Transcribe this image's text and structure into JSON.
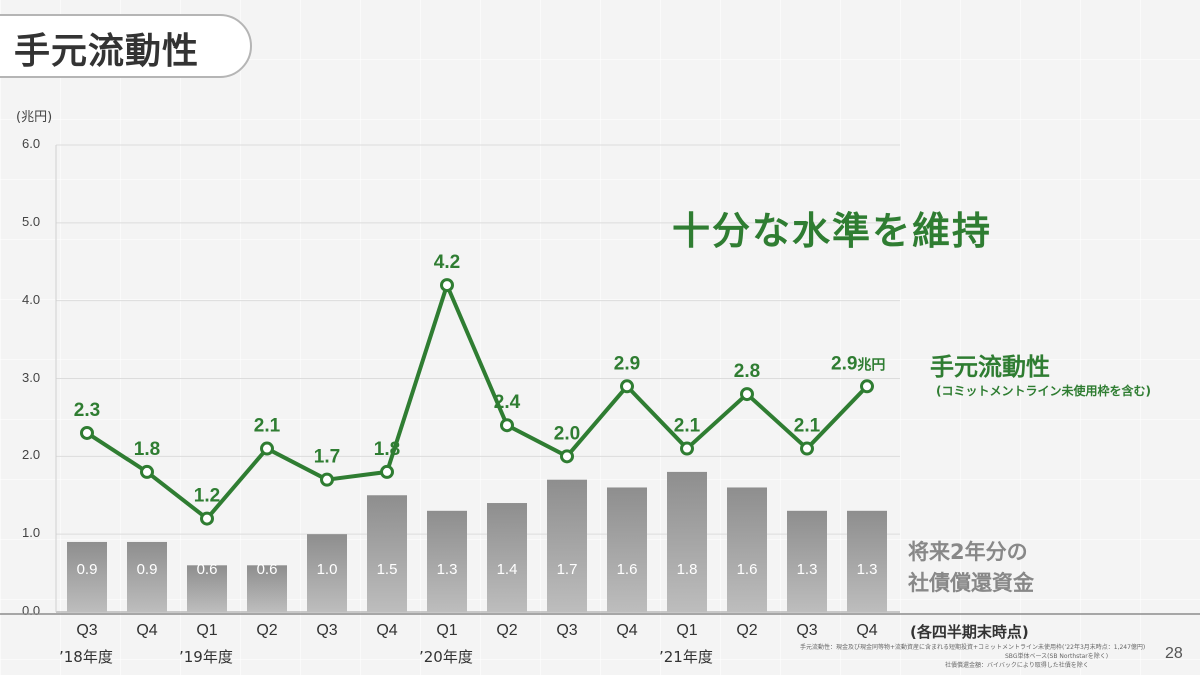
{
  "title": "手元流動性",
  "unit_label": "(兆円)",
  "callout": "十分な水準を維持",
  "legend": {
    "line_label": "手元流動性",
    "line_note": "(コミットメントライン未使用枠を含む)",
    "bar_label_1": "将来2年分の",
    "bar_label_2": "社債償還資金"
  },
  "axis_note": "(各四半期末時点)",
  "footnotes": [
    "手元流動性：現金及び現金同等物+流動資産に含まれる短期投資+コミットメントライン未使用枠(’22年3月末時点：1,247億円)",
    "SBG単体ベース(SB Northstarを除く)",
    "社債償還金額：バイバックにより取得した社債を除く"
  ],
  "page_number": "28",
  "colors": {
    "line": "#2f7d32",
    "bar": "#9a9a9a",
    "bar_label": "#ffffff",
    "text": "#333333"
  },
  "chart_data": {
    "type": "bar+line",
    "categories": [
      "Q3",
      "Q4",
      "Q1",
      "Q2",
      "Q3",
      "Q4",
      "Q1",
      "Q2",
      "Q3",
      "Q4",
      "Q1",
      "Q2",
      "Q3",
      "Q4"
    ],
    "year_groups": [
      {
        "label": "’18年度",
        "start": 0
      },
      {
        "label": "’19年度",
        "start": 2
      },
      {
        "label": "’20年度",
        "start": 6
      },
      {
        "label": "’21年度",
        "start": 10
      }
    ],
    "yticks": [
      "0.0",
      "1.0",
      "2.0",
      "3.0",
      "4.0",
      "5.0",
      "6.0"
    ],
    "ylim": [
      0,
      6
    ],
    "series": [
      {
        "name": "手元流動性",
        "kind": "line",
        "values": [
          2.3,
          1.8,
          1.2,
          2.1,
          1.7,
          1.8,
          4.2,
          2.4,
          2.0,
          2.9,
          2.1,
          2.8,
          2.1,
          2.9
        ]
      },
      {
        "name": "将来2年分の社債償還資金",
        "kind": "bar",
        "values": [
          0.9,
          0.9,
          0.6,
          0.6,
          1.0,
          1.5,
          1.3,
          1.4,
          1.7,
          1.6,
          1.8,
          1.6,
          1.3,
          1.3
        ]
      }
    ],
    "line_labels": [
      "2.3",
      "1.8",
      "1.2",
      "2.1",
      "1.7",
      "1.8",
      "4.2",
      "2.4",
      "2.0",
      "2.9",
      "2.1",
      "2.8",
      "2.1",
      "2.9"
    ],
    "line_last_unit": "兆円",
    "bar_labels": [
      "0.9",
      "0.9",
      "0.6",
      "0.6",
      "1.0",
      "1.5",
      "1.3",
      "1.4",
      "1.7",
      "1.6",
      "1.8",
      "1.6",
      "1.3",
      "1.3"
    ]
  }
}
